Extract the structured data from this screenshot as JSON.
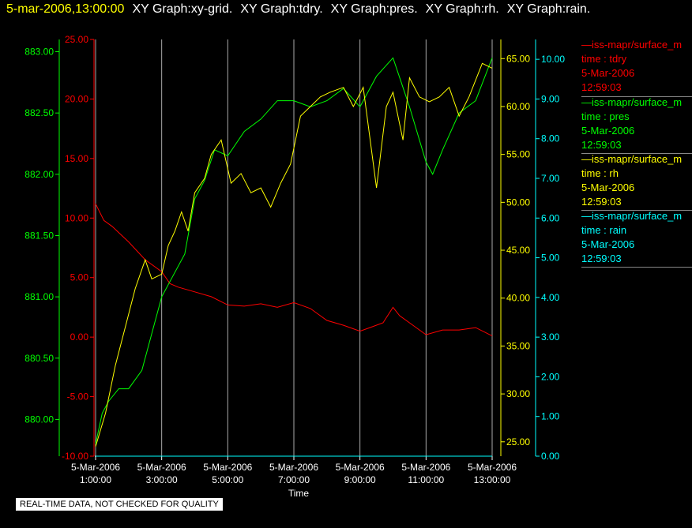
{
  "header": {
    "timestamp": "5-mar-2006,13:00:00",
    "graphs": [
      "XY Graph:xy-grid.",
      "XY Graph:tdry.",
      "XY Graph:pres.",
      "XY Graph:rh.",
      "XY Graph:rain."
    ]
  },
  "colors": {
    "tdry": "#ff0000",
    "pres": "#00ff00",
    "rh": "#ffff00",
    "rain": "#00ffff",
    "grid": "#aaaaaa",
    "bg": "#000000"
  },
  "legend": [
    {
      "source": "—iss-mapr/surface_m",
      "field": "time : tdry",
      "date": "5-Mar-2006",
      "time": "12:59:03",
      "color": "#ff0000"
    },
    {
      "source": "—iss-mapr/surface_m",
      "field": "time : pres",
      "date": "5-Mar-2006",
      "time": "12:59:03",
      "color": "#00ff00"
    },
    {
      "source": "—iss-mapr/surface_m",
      "field": "time : rh",
      "date": "5-Mar-2006",
      "time": "12:59:03",
      "color": "#ffff00"
    },
    {
      "source": "—iss-mapr/surface_m",
      "field": "time : rain",
      "date": "5-Mar-2006",
      "time": "12:59:03",
      "color": "#00ffff"
    }
  ],
  "footer_note": "REAL-TIME DATA, NOT CHECKED FOR QUALITY",
  "chart_data": {
    "type": "line",
    "xlabel": "Time",
    "x_ticks": [
      "5-Mar-2006 1:00:00",
      "5-Mar-2006 3:00:00",
      "5-Mar-2006 5:00:00",
      "5-Mar-2006 7:00:00",
      "5-Mar-2006 9:00:00",
      "5-Mar-2006 11:00:00",
      "5-Mar-2006 13:00:00"
    ],
    "xlim": [
      "5-Mar-2006 1:00:00",
      "5-Mar-2006 13:00:00"
    ],
    "grid": "vertical",
    "axes": {
      "tdry": {
        "ylim": [
          -10,
          25
        ],
        "ticks": [
          "-10.00",
          "-5.00",
          "0.00",
          "5.00",
          "10.00",
          "15.00",
          "20.00",
          "25.00"
        ]
      },
      "pres": {
        "ylim": [
          879.7,
          883.1
        ],
        "ticks": [
          "880.00",
          "880.50",
          "881.00",
          "881.50",
          "882.00",
          "882.50",
          "883.00"
        ]
      },
      "rh": {
        "ylim": [
          23.5,
          67
        ],
        "ticks": [
          "25.00",
          "30.00",
          "35.00",
          "40.00",
          "45.00",
          "50.00",
          "55.00",
          "60.00",
          "65.00"
        ]
      },
      "rain": {
        "ylim": [
          0,
          10.5
        ],
        "ticks": [
          "0.00",
          "1.00",
          "2.00",
          "3.00",
          "4.00",
          "5.00",
          "6.00",
          "7.00",
          "8.00",
          "9.00",
          "10.00"
        ]
      }
    },
    "series": [
      {
        "name": "time : tdry",
        "axis": "tdry",
        "color": "#ff0000",
        "x": [
          1.0,
          1.25,
          1.5,
          2.0,
          2.5,
          3.0,
          3.25,
          3.5,
          4.0,
          4.5,
          5.0,
          5.5,
          6.0,
          6.5,
          7.0,
          7.5,
          8.0,
          8.5,
          9.0,
          9.3,
          9.7,
          10.0,
          10.2,
          10.5,
          11.0,
          11.5,
          12.0,
          12.5,
          13.0
        ],
        "values": [
          11.2,
          9.8,
          9.3,
          8.0,
          6.5,
          5.5,
          4.5,
          4.2,
          3.8,
          3.4,
          2.7,
          2.6,
          2.8,
          2.5,
          2.9,
          2.4,
          1.4,
          1.0,
          0.5,
          0.8,
          1.2,
          2.5,
          1.8,
          1.2,
          0.2,
          0.6,
          0.6,
          0.8,
          0.1
        ]
      },
      {
        "name": "time : pres",
        "axis": "pres",
        "color": "#00ff00",
        "x": [
          1.0,
          1.2,
          1.4,
          1.7,
          2.0,
          2.4,
          2.7,
          3.0,
          3.3,
          3.7,
          4.0,
          4.3,
          4.6,
          5.0,
          5.5,
          6.0,
          6.5,
          7.0,
          7.5,
          8.0,
          8.5,
          9.0,
          9.5,
          10.0,
          10.5,
          11.0,
          11.2,
          11.5,
          12.0,
          12.5,
          13.0
        ],
        "values": [
          879.8,
          880.05,
          880.15,
          880.25,
          880.25,
          880.4,
          880.7,
          881.0,
          881.15,
          881.35,
          881.8,
          881.95,
          882.2,
          882.15,
          882.35,
          882.45,
          882.6,
          882.6,
          882.55,
          882.6,
          882.7,
          882.55,
          882.8,
          882.95,
          882.55,
          882.1,
          882.0,
          882.2,
          882.5,
          882.6,
          882.95
        ]
      },
      {
        "name": "time : rh",
        "axis": "rh",
        "color": "#ffff00",
        "x": [
          1.0,
          1.3,
          1.6,
          1.9,
          2.2,
          2.5,
          2.7,
          3.0,
          3.2,
          3.4,
          3.6,
          3.8,
          4.0,
          4.3,
          4.5,
          4.8,
          5.1,
          5.4,
          5.7,
          6.0,
          6.3,
          6.6,
          6.9,
          7.2,
          7.5,
          7.8,
          8.1,
          8.5,
          8.8,
          9.1,
          9.5,
          9.8,
          10.0,
          10.3,
          10.5,
          10.8,
          11.1,
          11.4,
          11.7,
          12.0,
          12.3,
          12.7,
          13.0
        ],
        "values": [
          24.5,
          28.0,
          33.0,
          37.0,
          41.0,
          44.0,
          42.0,
          42.5,
          45.5,
          47.0,
          49.0,
          47.0,
          51.0,
          52.5,
          55.0,
          56.5,
          52.0,
          53.0,
          51.0,
          51.5,
          49.5,
          52.0,
          54.0,
          59.0,
          60.0,
          61.0,
          61.5,
          62.0,
          60.0,
          62.0,
          51.5,
          60.0,
          61.5,
          56.5,
          63.0,
          61.0,
          60.5,
          61.0,
          62.0,
          59.0,
          61.0,
          64.5,
          64.0
        ]
      },
      {
        "name": "time : rain",
        "axis": "rain",
        "color": "#00ffff",
        "x": [
          1.0,
          13.0
        ],
        "values": [
          0.0,
          0.0
        ]
      }
    ]
  }
}
